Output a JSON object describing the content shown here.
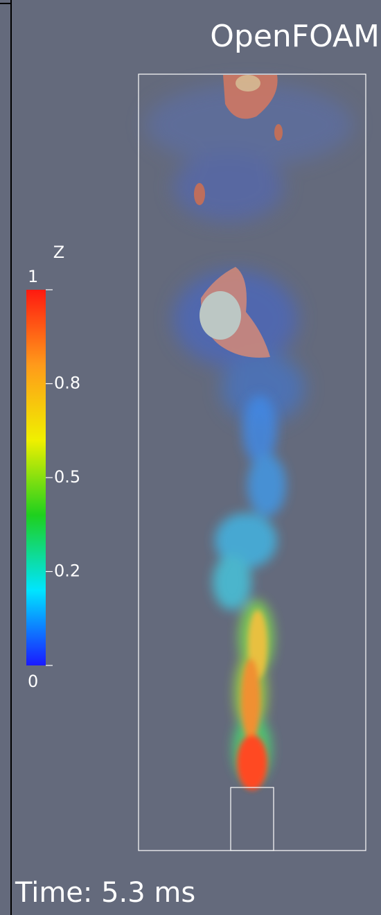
{
  "title": "OpenFOAM",
  "colorbar": {
    "title": "Z",
    "range": [
      0,
      1
    ],
    "ticks": [
      0,
      {
        "value": 0.25,
        "label": "0.2"
      },
      {
        "value": 0.5,
        "label": "0.5"
      },
      {
        "value": 0.75,
        "label": "0.8"
      },
      1
    ],
    "colors": [
      "#1a1aff",
      "#00e5ff",
      "#1ed01e",
      "#f0f000",
      "#ff9a1a",
      "#ff1a10"
    ]
  },
  "time_label": "Time: 5.3 ms"
}
